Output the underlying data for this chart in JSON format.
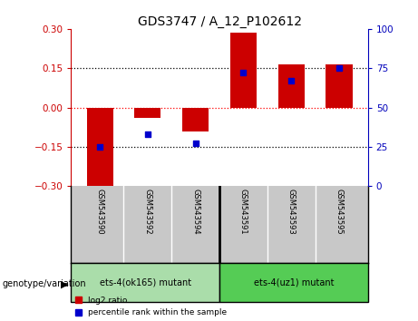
{
  "title": "GDS3747 / A_12_P102612",
  "samples": [
    "GSM543590",
    "GSM543592",
    "GSM543594",
    "GSM543591",
    "GSM543593",
    "GSM543595"
  ],
  "log2_ratio": [
    -0.305,
    -0.04,
    -0.09,
    0.285,
    0.165,
    0.165
  ],
  "percentile_rank": [
    25,
    33,
    27,
    72,
    67,
    75
  ],
  "ylim_left": [
    -0.3,
    0.3
  ],
  "ylim_right": [
    0,
    100
  ],
  "yticks_left": [
    -0.3,
    -0.15,
    0,
    0.15,
    0.3
  ],
  "yticks_right": [
    0,
    25,
    50,
    75,
    100
  ],
  "bar_color": "#cc0000",
  "dot_color": "#0000cc",
  "group1_label": "ets-4(ok165) mutant",
  "group2_label": "ets-4(uz1) mutant",
  "group1_color": "#aaddaa",
  "group2_color": "#55cc55",
  "genotype_label": "genotype/variation",
  "legend_log2": "log2 ratio",
  "legend_pct": "percentile rank within the sample",
  "left_axis_color": "#cc0000",
  "right_axis_color": "#0000bb",
  "tick_label_fontsize": 7.5,
  "title_fontsize": 10,
  "bar_width": 0.55,
  "sample_bg": "#c8c8c8"
}
